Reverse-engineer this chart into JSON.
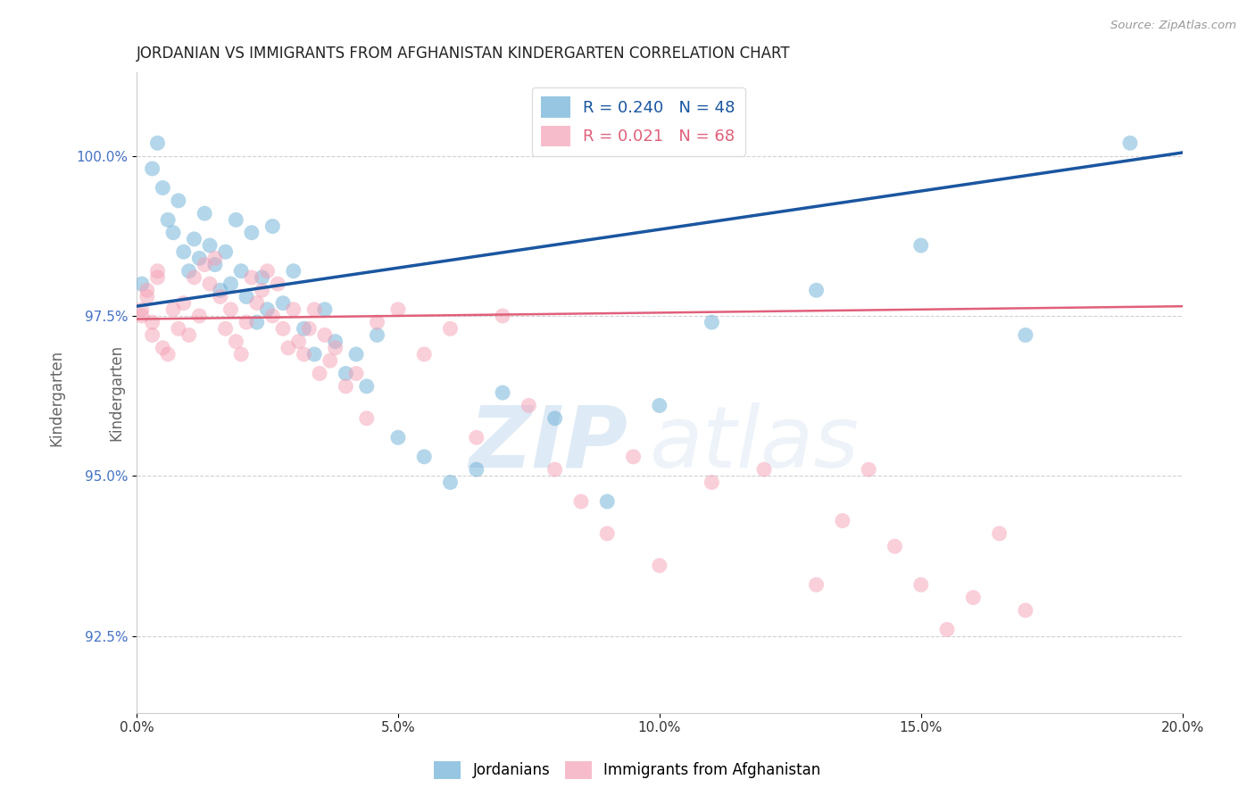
{
  "title": "JORDANIAN VS IMMIGRANTS FROM AFGHANISTAN KINDERGARTEN CORRELATION CHART",
  "source": "Source: ZipAtlas.com",
  "ylabel": "Kindergarten",
  "xlabel_ticks": [
    "0.0%",
    "5.0%",
    "10.0%",
    "15.0%",
    "20.0%"
  ],
  "xlabel_vals": [
    0.0,
    0.05,
    0.1,
    0.15,
    0.2
  ],
  "ylabel_ticks": [
    "92.5%",
    "95.0%",
    "97.5%",
    "100.0%"
  ],
  "ylabel_vals": [
    92.5,
    95.0,
    97.5,
    100.0
  ],
  "xlim": [
    0.0,
    0.2
  ],
  "ylim": [
    91.3,
    101.3
  ],
  "blue_R": 0.24,
  "blue_N": 48,
  "pink_R": 0.021,
  "pink_N": 68,
  "legend_label_blue": "Jordanians",
  "legend_label_pink": "Immigrants from Afghanistan",
  "watermark_zip": "ZIP",
  "watermark_atlas": "atlas",
  "blue_color": "#6aaed6",
  "pink_color": "#f4a0b5",
  "blue_line_color": "#1a56a0",
  "pink_line_color": "#e0607a",
  "background_color": "#ffffff",
  "grid_color": "#cccccc",
  "title_color": "#222222",
  "axis_label_color": "#666666",
  "tick_label_color_y": "#4472c4",
  "tick_label_color_x": "#333333",
  "blue_scatter_x": [
    0.003,
    0.004,
    0.005,
    0.006,
    0.007,
    0.008,
    0.009,
    0.01,
    0.011,
    0.012,
    0.013,
    0.014,
    0.015,
    0.016,
    0.017,
    0.018,
    0.019,
    0.02,
    0.021,
    0.022,
    0.023,
    0.024,
    0.025,
    0.026,
    0.028,
    0.03,
    0.032,
    0.034,
    0.036,
    0.038,
    0.04,
    0.042,
    0.044,
    0.046,
    0.05,
    0.055,
    0.06,
    0.065,
    0.07,
    0.08,
    0.09,
    0.1,
    0.11,
    0.13,
    0.15,
    0.17,
    0.19,
    0.001
  ],
  "blue_scatter_y": [
    99.8,
    100.2,
    99.5,
    99.0,
    98.8,
    99.3,
    98.5,
    98.2,
    98.7,
    98.4,
    99.1,
    98.6,
    98.3,
    97.9,
    98.5,
    98.0,
    99.0,
    98.2,
    97.8,
    98.8,
    97.4,
    98.1,
    97.6,
    98.9,
    97.7,
    98.2,
    97.3,
    96.9,
    97.6,
    97.1,
    96.6,
    96.9,
    96.4,
    97.2,
    95.6,
    95.3,
    94.9,
    95.1,
    96.3,
    95.9,
    94.6,
    96.1,
    97.4,
    97.9,
    98.6,
    97.2,
    100.2,
    98.0
  ],
  "pink_scatter_x": [
    0.001,
    0.002,
    0.003,
    0.004,
    0.005,
    0.006,
    0.007,
    0.008,
    0.009,
    0.01,
    0.011,
    0.012,
    0.013,
    0.014,
    0.015,
    0.016,
    0.017,
    0.018,
    0.019,
    0.02,
    0.021,
    0.022,
    0.023,
    0.024,
    0.025,
    0.026,
    0.027,
    0.028,
    0.029,
    0.03,
    0.031,
    0.032,
    0.033,
    0.034,
    0.035,
    0.036,
    0.037,
    0.038,
    0.04,
    0.042,
    0.044,
    0.046,
    0.05,
    0.055,
    0.06,
    0.065,
    0.07,
    0.075,
    0.08,
    0.085,
    0.09,
    0.095,
    0.1,
    0.11,
    0.12,
    0.13,
    0.135,
    0.14,
    0.145,
    0.15,
    0.155,
    0.16,
    0.165,
    0.17,
    0.001,
    0.002,
    0.003,
    0.004
  ],
  "pink_scatter_y": [
    97.5,
    97.8,
    97.2,
    98.1,
    97.0,
    96.9,
    97.6,
    97.3,
    97.7,
    97.2,
    98.1,
    97.5,
    98.3,
    98.0,
    98.4,
    97.8,
    97.3,
    97.6,
    97.1,
    96.9,
    97.4,
    98.1,
    97.7,
    97.9,
    98.2,
    97.5,
    98.0,
    97.3,
    97.0,
    97.6,
    97.1,
    96.9,
    97.3,
    97.6,
    96.6,
    97.2,
    96.8,
    97.0,
    96.4,
    96.6,
    95.9,
    97.4,
    97.6,
    96.9,
    97.3,
    95.6,
    97.5,
    96.1,
    95.1,
    94.6,
    94.1,
    95.3,
    93.6,
    94.9,
    95.1,
    93.3,
    94.3,
    95.1,
    93.9,
    93.3,
    92.6,
    93.1,
    94.1,
    92.9,
    97.6,
    97.9,
    97.4,
    98.2
  ],
  "blue_line_x0": 0.0,
  "blue_line_x1": 0.2,
  "blue_line_y0": 97.65,
  "blue_line_y1": 100.05,
  "pink_line_x0": 0.0,
  "pink_line_x1": 0.2,
  "pink_line_y0": 97.45,
  "pink_line_y1": 97.65
}
